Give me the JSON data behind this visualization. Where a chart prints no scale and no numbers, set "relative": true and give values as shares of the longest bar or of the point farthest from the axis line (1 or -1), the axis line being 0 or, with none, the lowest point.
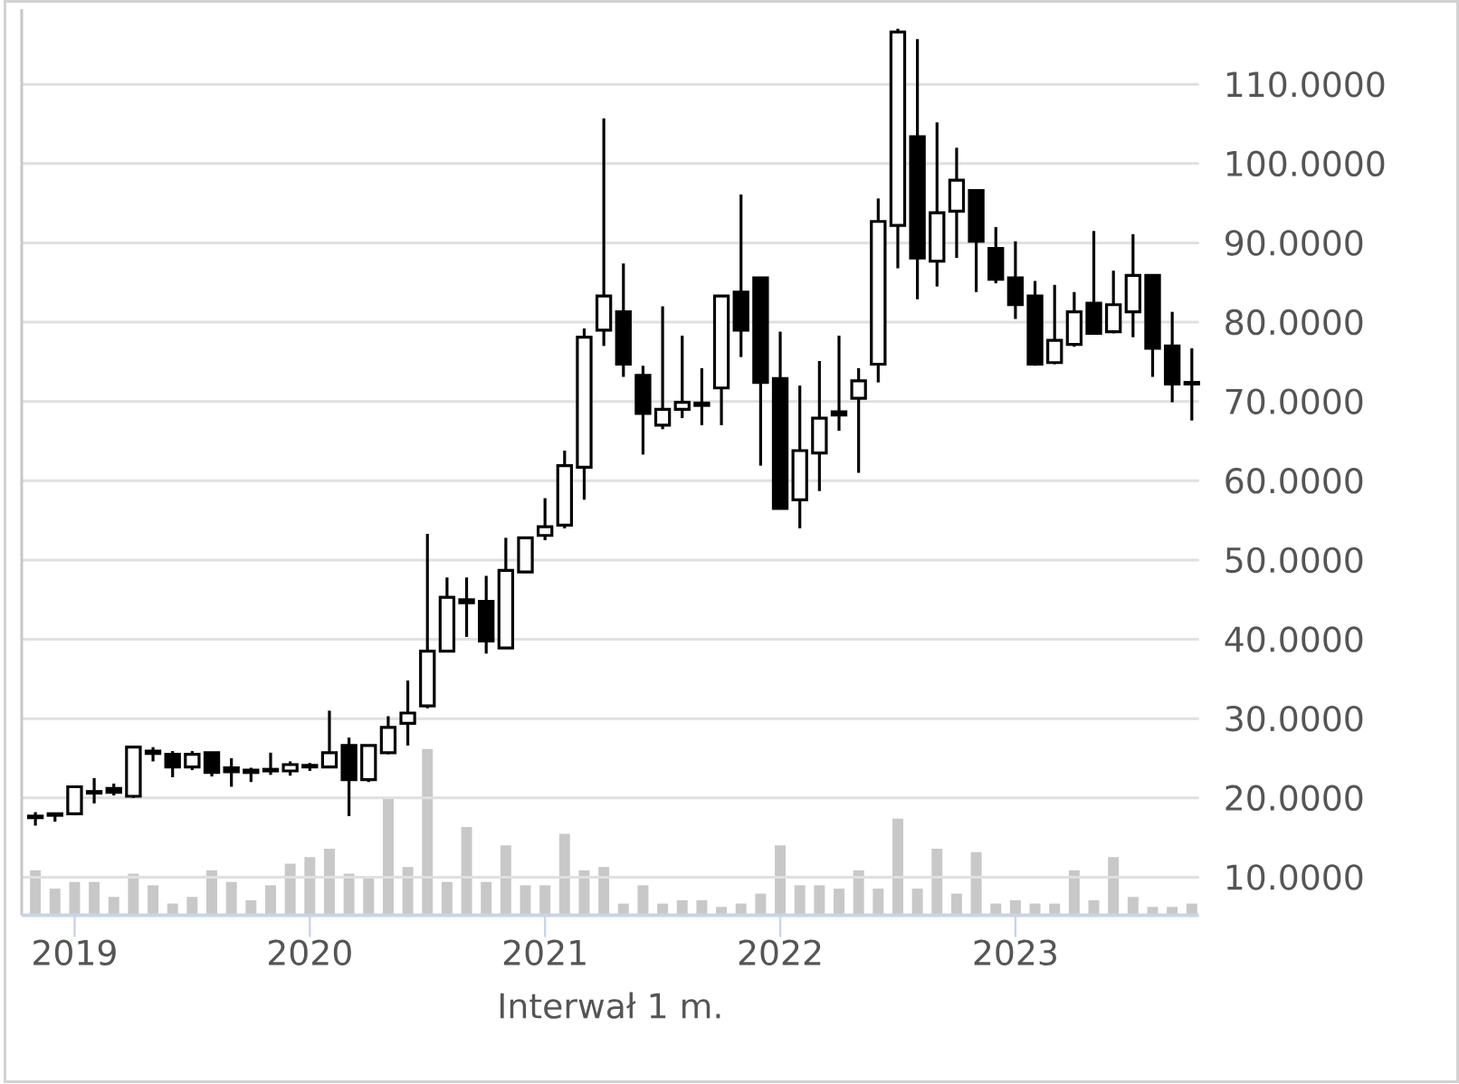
{
  "chart_data": [
    {
      "type": "candlestick",
      "xlabel": "Interwał 1 m.",
      "x": [
        "2018-11",
        "2018-12",
        "2019-01",
        "2019-02",
        "2019-03",
        "2019-04",
        "2019-05",
        "2019-06",
        "2019-07",
        "2019-08",
        "2019-09",
        "2019-10",
        "2019-11",
        "2019-12",
        "2020-01",
        "2020-02",
        "2020-03",
        "2020-04",
        "2020-05",
        "2020-06",
        "2020-07",
        "2020-08",
        "2020-09",
        "2020-10",
        "2020-11",
        "2020-12",
        "2021-01",
        "2021-02",
        "2021-03",
        "2021-04",
        "2021-05",
        "2021-06",
        "2021-07",
        "2021-08",
        "2021-09",
        "2021-10",
        "2021-11",
        "2021-12",
        "2022-01",
        "2022-02",
        "2022-03",
        "2022-04",
        "2022-05",
        "2022-06",
        "2022-07",
        "2022-08",
        "2022-09",
        "2022-10",
        "2022-11",
        "2022-12",
        "2023-01",
        "2023-02",
        "2023-03",
        "2023-04",
        "2023-05",
        "2023-06",
        "2023-07",
        "2023-08",
        "2023-09",
        "2023-10"
      ],
      "ohlc": [
        [
          17.7,
          18.2,
          16.5,
          17.5
        ],
        [
          17.8,
          18.0,
          17.0,
          18.0
        ],
        [
          18.0,
          21.5,
          17.8,
          21.4
        ],
        [
          20.8,
          22.5,
          19.3,
          20.6
        ],
        [
          21.2,
          21.8,
          20.3,
          20.7
        ],
        [
          20.2,
          26.5,
          20.0,
          26.4
        ],
        [
          25.9,
          26.4,
          24.6,
          25.6
        ],
        [
          25.5,
          25.9,
          22.6,
          23.9
        ],
        [
          23.9,
          25.9,
          23.5,
          25.5
        ],
        [
          25.7,
          25.8,
          22.7,
          23.2
        ],
        [
          23.8,
          25.0,
          21.4,
          23.3
        ],
        [
          23.2,
          23.8,
          22.0,
          23.5
        ],
        [
          23.4,
          25.7,
          22.9,
          23.6
        ],
        [
          23.4,
          24.6,
          22.8,
          24.2
        ],
        [
          23.9,
          24.4,
          23.4,
          24.1
        ],
        [
          23.9,
          31.0,
          23.9,
          25.7
        ],
        [
          26.6,
          27.6,
          17.7,
          22.3
        ],
        [
          22.3,
          26.6,
          22.0,
          26.6
        ],
        [
          25.7,
          30.3,
          25.5,
          28.9
        ],
        [
          29.4,
          34.8,
          26.6,
          30.7
        ],
        [
          31.6,
          53.3,
          31.3,
          38.5
        ],
        [
          38.5,
          47.8,
          38.5,
          45.3
        ],
        [
          45.0,
          47.8,
          40.3,
          44.6
        ],
        [
          44.8,
          48.0,
          38.2,
          39.8
        ],
        [
          38.9,
          52.8,
          38.9,
          48.7
        ],
        [
          48.5,
          52.9,
          48.5,
          52.8
        ],
        [
          53.1,
          57.8,
          52.5,
          54.2
        ],
        [
          54.4,
          63.8,
          54.0,
          61.9
        ],
        [
          61.7,
          79.2,
          57.6,
          78.1
        ],
        [
          79.0,
          105.7,
          77.0,
          83.3
        ],
        [
          81.3,
          87.4,
          73.1,
          74.7
        ],
        [
          73.3,
          74.5,
          63.3,
          68.5
        ],
        [
          67.0,
          82.0,
          66.5,
          69.0
        ],
        [
          69.0,
          78.3,
          67.9,
          69.9
        ],
        [
          69.5,
          74.2,
          67.0,
          69.8
        ],
        [
          71.7,
          83.3,
          67.0,
          83.3
        ],
        [
          83.8,
          96.1,
          75.6,
          79.0
        ],
        [
          85.6,
          85.6,
          61.9,
          72.4
        ],
        [
          72.9,
          78.8,
          56.5,
          56.5
        ],
        [
          57.6,
          72.0,
          54.0,
          63.8
        ],
        [
          63.5,
          75.1,
          58.7,
          67.9
        ],
        [
          68.7,
          78.3,
          66.3,
          68.3
        ],
        [
          70.4,
          74.2,
          61.0,
          72.6
        ],
        [
          74.7,
          95.6,
          72.4,
          92.7
        ],
        [
          92.2,
          117.0,
          86.8,
          116.6
        ],
        [
          103.4,
          115.7,
          82.9,
          88.1
        ],
        [
          87.7,
          105.2,
          84.5,
          93.8
        ],
        [
          94.0,
          102.0,
          88.1,
          97.9
        ],
        [
          96.6,
          96.6,
          83.8,
          90.2
        ],
        [
          89.3,
          92.0,
          84.9,
          85.4
        ],
        [
          85.6,
          90.2,
          80.4,
          82.2
        ],
        [
          83.3,
          85.2,
          74.5,
          74.7
        ],
        [
          74.9,
          84.7,
          74.7,
          77.7
        ],
        [
          77.2,
          83.8,
          76.9,
          81.3
        ],
        [
          82.4,
          91.5,
          78.5,
          78.6
        ],
        [
          78.8,
          86.5,
          78.6,
          82.2
        ],
        [
          81.3,
          91.1,
          78.1,
          85.9
        ],
        [
          85.9,
          85.9,
          73.1,
          76.7
        ],
        [
          77.0,
          81.3,
          69.9,
          72.2
        ],
        [
          72.4,
          76.7,
          67.6,
          72.2
        ]
      ],
      "xlim": [
        "2018-10-10",
        "2023-10-12"
      ],
      "xticks": [
        "2019",
        "2020",
        "2021",
        "2022",
        "2023"
      ],
      "ylim": [
        5.2,
        119.5
      ],
      "yticks": [
        {
          "value": 10,
          "label": "10.0000"
        },
        {
          "value": 20,
          "label": "20.0000"
        },
        {
          "value": 30,
          "label": "30.0000"
        },
        {
          "value": 40,
          "label": "40.0000"
        },
        {
          "value": 50,
          "label": "50.0000"
        },
        {
          "value": 60,
          "label": "60.0000"
        },
        {
          "value": 70,
          "label": "70.0000"
        },
        {
          "value": 80,
          "label": "80.0000"
        },
        {
          "value": 90,
          "label": "90.0000"
        },
        {
          "value": 100,
          "label": "100.0000"
        },
        {
          "value": 110,
          "label": "110.0000"
        }
      ],
      "grid": "y"
    },
    {
      "type": "bar",
      "relative": true,
      "color": "#c8c8c8",
      "x": [
        "2018-11",
        "2018-12",
        "2019-01",
        "2019-02",
        "2019-03",
        "2019-04",
        "2019-05",
        "2019-06",
        "2019-07",
        "2019-08",
        "2019-09",
        "2019-10",
        "2019-11",
        "2019-12",
        "2020-01",
        "2020-02",
        "2020-03",
        "2020-04",
        "2020-05",
        "2020-06",
        "2020-07",
        "2020-08",
        "2020-09",
        "2020-10",
        "2020-11",
        "2020-12",
        "2021-01",
        "2021-02",
        "2021-03",
        "2021-04",
        "2021-05",
        "2021-06",
        "2021-07",
        "2021-08",
        "2021-09",
        "2021-10",
        "2021-11",
        "2021-12",
        "2022-01",
        "2022-02",
        "2022-03",
        "2022-04",
        "2022-05",
        "2022-06",
        "2022-07",
        "2022-08",
        "2022-09",
        "2022-10",
        "2022-11",
        "2022-12",
        "2023-01",
        "2023-02",
        "2023-03",
        "2023-04",
        "2023-05",
        "2023-06",
        "2023-07",
        "2023-08",
        "2023-09",
        "2023-10"
      ],
      "xlim": [
        "2018-10-10",
        "2023-10-12"
      ],
      "values": [
        0.27,
        0.16,
        0.2,
        0.2,
        0.11,
        0.25,
        0.18,
        0.07,
        0.11,
        0.27,
        0.2,
        0.09,
        0.18,
        0.31,
        0.35,
        0.4,
        0.25,
        0.22,
        0.71,
        0.29,
        1,
        0.2,
        0.53,
        0.2,
        0.42,
        0.18,
        0.18,
        0.49,
        0.27,
        0.29,
        0.07,
        0.18,
        0.07,
        0.09,
        0.09,
        0.05,
        0.07,
        0.13,
        0.42,
        0.18,
        0.18,
        0.16,
        0.27,
        0.16,
        0.58,
        0.16,
        0.4,
        0.13,
        0.38,
        0.07,
        0.09,
        0.07,
        0.07,
        0.27,
        0.09,
        0.35,
        0.11,
        0.05,
        0.05,
        0.07
      ]
    }
  ]
}
